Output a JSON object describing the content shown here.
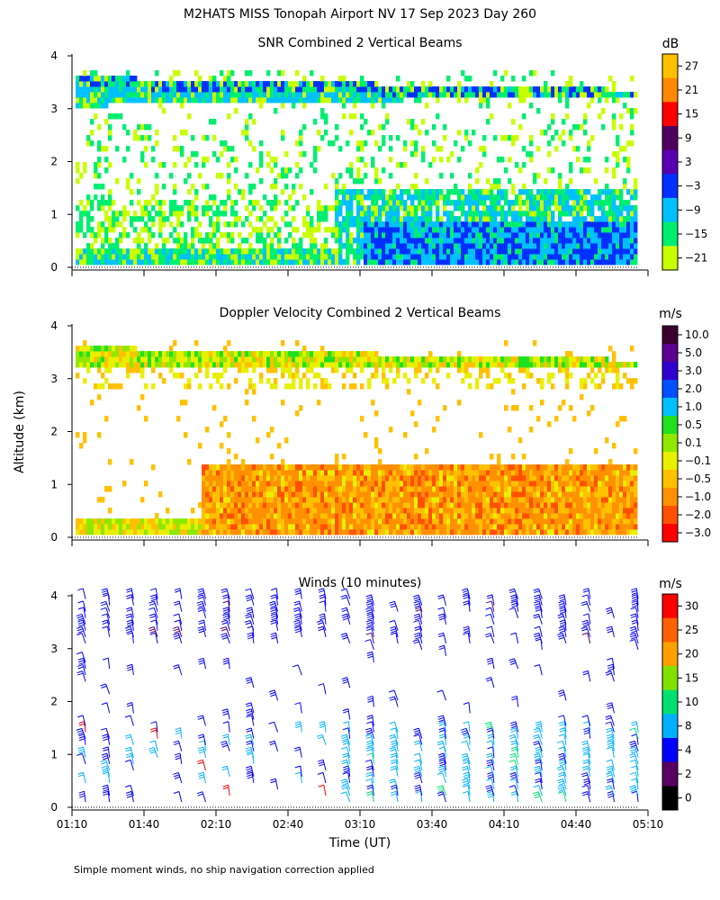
{
  "title": "M2HATS MISS Tonopah Airport NV  17 Sep 2023 Day 260",
  "footnote": "Simple moment winds, no ship navigation correction applied",
  "ylabel": "Altitude (km)",
  "xlabel": "Time (UT)",
  "chart_data": [
    {
      "type": "heatmap",
      "title": "SNR Combined 2 Vertical Beams",
      "colorbar_unit": "dB",
      "x_range": [
        "01:10",
        "05:10"
      ],
      "ylim": [
        0,
        4
      ],
      "yticks": [
        0,
        1,
        2,
        3,
        4
      ],
      "colorbar_ticks": [
        "27",
        "21",
        "15",
        "9",
        "3",
        "−3",
        "−9",
        "−15",
        "−21"
      ],
      "colorbar_colors": [
        "#ffc000",
        "#ff8800",
        "#ff0000",
        "#50005f",
        "#5800b0",
        "#0030ff",
        "#00c0ff",
        "#00ee70",
        "#c8ff00"
      ],
      "features": [
        "Continuous cloud/echo layer near 3.3-3.6 km across the whole period",
        "Patchy weak returns (about -21 to -15 dB) from 0 to 3 km early",
        "Strong returns (-9 to 3 dB) below about 1.3 km after 03:00"
      ]
    },
    {
      "type": "heatmap",
      "title": "Doppler Velocity Combined 2 Vertical Beams",
      "colorbar_unit": "m/s",
      "x_range": [
        "01:10",
        "05:10"
      ],
      "ylim": [
        0,
        4
      ],
      "yticks": [
        0,
        1,
        2,
        3,
        4
      ],
      "colorbar_ticks": [
        "10.0",
        "5.0",
        "3.0",
        "2.0",
        "1.0",
        "0.5",
        "0.1",
        "−0.1",
        "−0.5",
        "−1.0",
        "−2.0",
        "−3.0"
      ],
      "colorbar_colors": [
        "#3a0030",
        "#5b0090",
        "#3000d0",
        "#0050ff",
        "#00c0ff",
        "#20e020",
        "#90e800",
        "#e8f000",
        "#ffc000",
        "#ff9000",
        "#ff5000",
        "#ff0000"
      ],
      "features": [
        "Layer near 3.3-3.6 km with values near 0 m/s",
        "Weak downward motion (-0.5 to -2.0 m/s) below 1.3 km after 02:00"
      ]
    },
    {
      "type": "wind_barbs",
      "title": "Winds (10 minutes)",
      "colorbar_unit": "m/s",
      "x_range": [
        "01:10",
        "05:10"
      ],
      "ylim": [
        0,
        4
      ],
      "yticks": [
        0,
        1,
        2,
        3,
        4
      ],
      "colorbar_ticks": [
        "30",
        "25",
        "20",
        "15",
        "10",
        "8",
        "4",
        "2",
        "0"
      ],
      "colorbar_colors": [
        "#ff0000",
        "#ff6000",
        "#ffa000",
        "#80e000",
        "#00e070",
        "#00b0ff",
        "#0000ff",
        "#5a0060",
        "#000000"
      ],
      "xticks": [
        "01:10",
        "01:40",
        "02:10",
        "02:40",
        "03:10",
        "03:40",
        "04:10",
        "04:40",
        "05:10"
      ],
      "features": [
        "Wind profiles every 10 minutes from 0 to about 3.9 km",
        "Light winds (4-10 m/s) in the lowest 1.5 km after 03:00",
        "Strong winds (25-30 m/s) at scattered heights before 03:00"
      ]
    }
  ]
}
